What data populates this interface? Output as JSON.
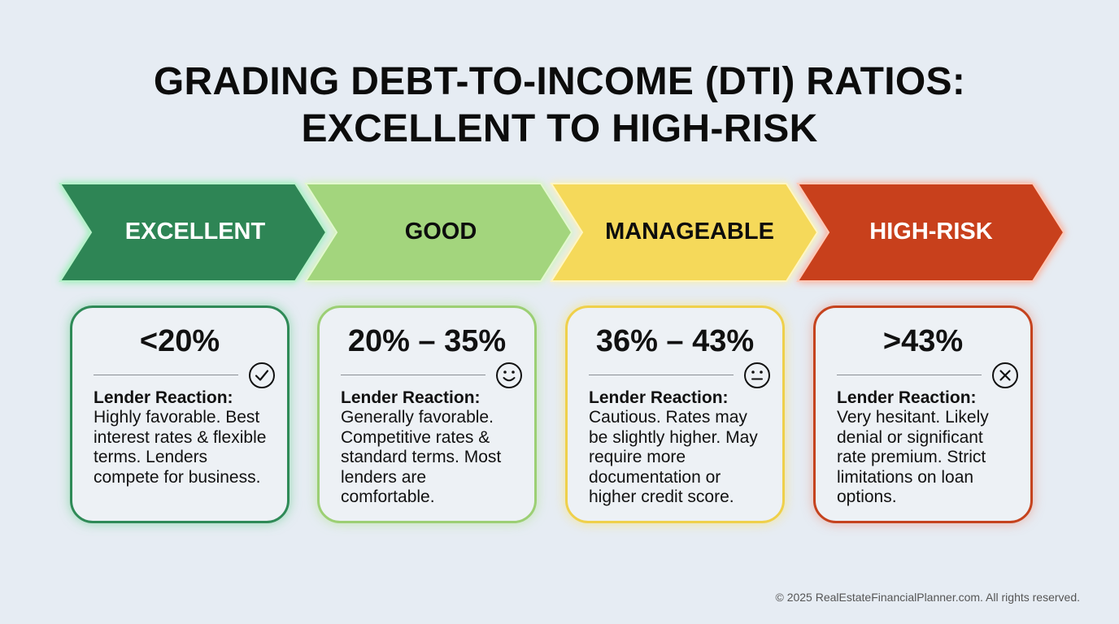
{
  "title": {
    "line1": "GRADING DEBT-TO-INCOME (DTI) RATIOS:",
    "line2": "EXCELLENT TO HIGH-RISK"
  },
  "grades": [
    {
      "label": "EXCELLENT",
      "range": "<20%",
      "reaction_label": "Lender Reaction:",
      "reaction": "Highly favorable. Best interest rates & flexible terms. Lenders compete for business.",
      "icon": "check-circle-icon",
      "color": "#2e8554",
      "text_color": "#ffffff",
      "border_color": "#2f8a57"
    },
    {
      "label": "GOOD",
      "range": "20% – 35%",
      "reaction_label": "Lender Reaction:",
      "reaction": "Generally favorable. Competitive rates & standard terms. Most lenders are comfortable.",
      "icon": "smile-icon",
      "color": "#a3d57d",
      "text_color": "#0d0d0d",
      "border_color": "#9ccf74"
    },
    {
      "label": "MANAGEABLE",
      "range": "36% – 43%",
      "reaction_label": "Lender Reaction:",
      "reaction": "Cautious. Rates may be slightly higher. May require more documentation or higher credit score.",
      "icon": "neutral-face-icon",
      "color": "#f5d95a",
      "text_color": "#0d0d0d",
      "border_color": "#efd04b"
    },
    {
      "label": "HIGH-RISK",
      "range": ">43%",
      "reaction_label": "Lender Reaction:",
      "reaction": "Very hesitant. Likely denial or significant rate premium. Strict limitations on loan options.",
      "icon": "x-circle-icon",
      "color": "#c8401a",
      "text_color": "#ffffff",
      "border_color": "#c5431e"
    }
  ],
  "footer": "© 2025 RealEstateFinancialPlanner.com. All rights reserved."
}
